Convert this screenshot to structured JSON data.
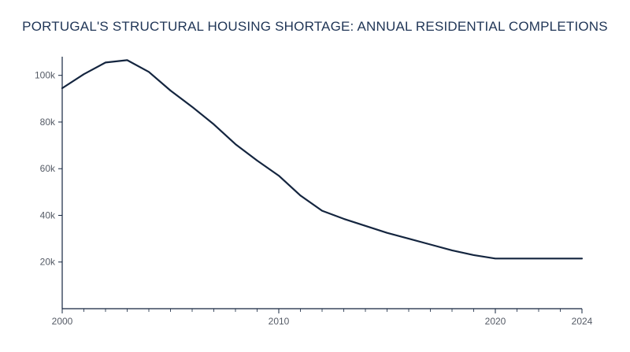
{
  "chart_data": {
    "type": "line",
    "title": "PORTUGAL'S STRUCTURAL HOUSING SHORTAGE: ANNUAL RESIDENTIAL COMPLETIONS",
    "xlabel": "",
    "ylabel": "",
    "xlim": [
      2000,
      2024
    ],
    "ylim": [
      0,
      108000
    ],
    "x_ticks": [
      2000,
      2010,
      2020,
      2024
    ],
    "x_tick_labels": [
      "2000",
      "2010",
      "2020",
      "2024"
    ],
    "x_minor_ticks": [
      2001,
      2002,
      2003,
      2004,
      2005,
      2006,
      2007,
      2008,
      2009,
      2011,
      2012,
      2013,
      2014,
      2015,
      2016,
      2017,
      2018,
      2019,
      2021,
      2022,
      2023
    ],
    "y_ticks": [
      20000,
      40000,
      60000,
      80000,
      100000
    ],
    "y_tick_labels": [
      "20k",
      "40k",
      "60k",
      "80k",
      "100k"
    ],
    "grid": false,
    "color": "#14253f",
    "series": [
      {
        "x": [
          2000,
          2001,
          2002,
          2003,
          2004,
          2005,
          2006,
          2007,
          2008,
          2009,
          2010,
          2011,
          2012,
          2013,
          2014,
          2015,
          2016,
          2017,
          2018,
          2019,
          2020,
          2021,
          2022,
          2023,
          2024
        ],
        "values": [
          94500,
          100500,
          105500,
          106500,
          101500,
          93500,
          86500,
          79000,
          70500,
          63500,
          57000,
          48500,
          42000,
          38500,
          35500,
          32500,
          30000,
          27500,
          25000,
          23000,
          21500,
          21500,
          21500,
          21500,
          21500
        ]
      }
    ]
  }
}
